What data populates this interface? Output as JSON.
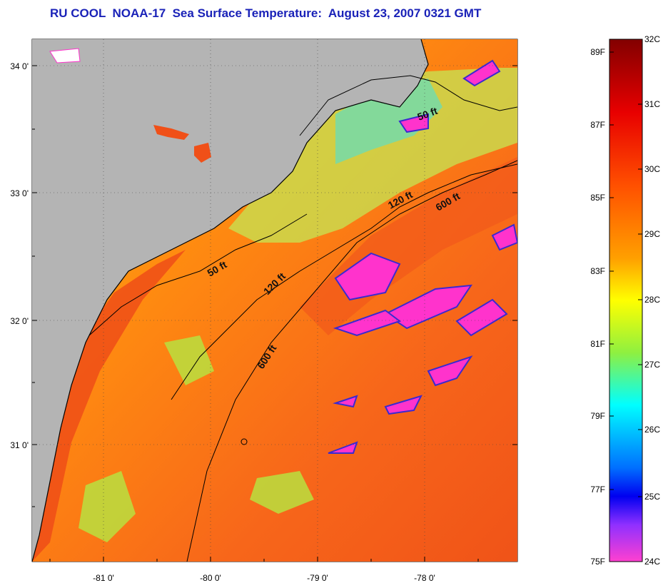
{
  "title": "RU COOL  NOAA-17  Sea Surface Temperature:  August 23, 2007 0321 GMT",
  "map": {
    "lat_labels": [
      "34 0'",
      "33 0'",
      "32 0'",
      "31 0'"
    ],
    "lon_labels": [
      "-81 0'",
      "-80 0'",
      "-79 0'",
      "-78 0'"
    ],
    "contours": [
      {
        "label": "50 ft"
      },
      {
        "label": "50 ft"
      },
      {
        "label": "120 ft"
      },
      {
        "label": "120 ft"
      },
      {
        "label": "600 ft"
      },
      {
        "label": "600 ft"
      }
    ],
    "colors": {
      "land": "#b4b4b4",
      "warm": "#f25a1e",
      "cool": "#ff33cc"
    }
  },
  "colorbar": {
    "celsius_labels": [
      "32C",
      "31C",
      "30C",
      "29C",
      "28C",
      "27C",
      "26C",
      "25C",
      "24C"
    ],
    "fahrenheit_labels": [
      "89F",
      "87F",
      "85F",
      "83F",
      "81F",
      "79F",
      "77F",
      "75F"
    ]
  }
}
